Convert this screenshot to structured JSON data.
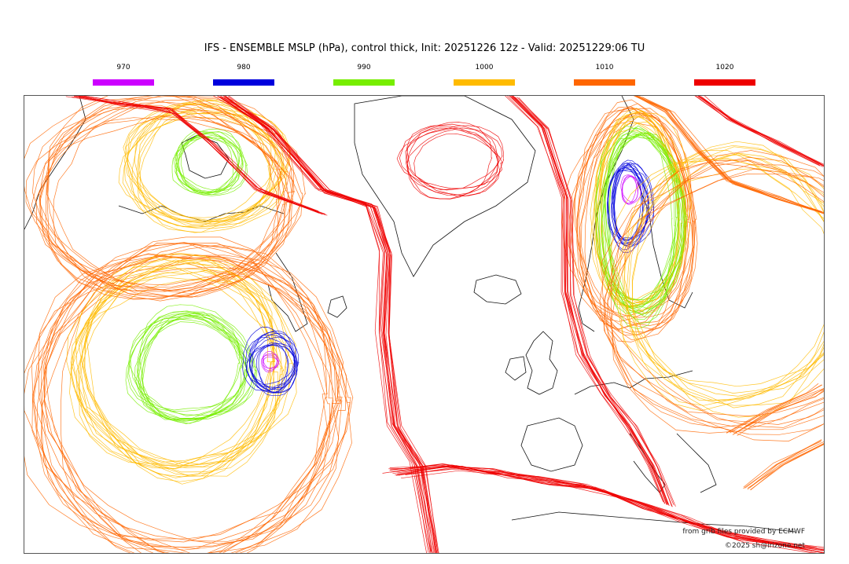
{
  "title": "IFS - ENSEMBLE MSLP (hPa), control thick, Init: 20251226 12z - Valid: 20251229:06 TU",
  "legend": [
    {
      "label": "970",
      "color": "#cc00ff"
    },
    {
      "label": "980",
      "color": "#0000dd"
    },
    {
      "label": "990",
      "color": "#77ee00"
    },
    {
      "label": "1000",
      "color": "#ffbb00"
    },
    {
      "label": "1010",
      "color": "#ff6600"
    },
    {
      "label": "1020",
      "color": "#ee0000"
    }
  ],
  "credits": {
    "source": "from grib files provided by ECMWF",
    "copyright": "©2025 sh@irizone.net"
  }
}
